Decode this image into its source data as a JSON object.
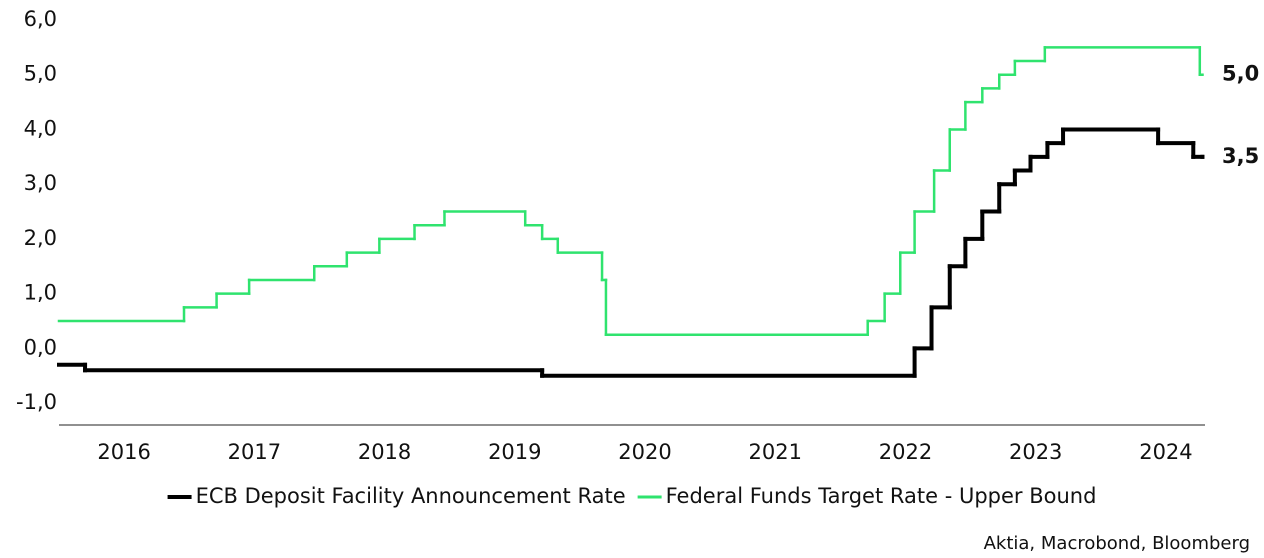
{
  "chart_data": {
    "type": "step",
    "source": "Aktia, Macrobond, Bloomberg",
    "xlim": [
      2016.0,
      2024.8
    ],
    "xticks": [
      {
        "value": 2016.5,
        "label": "2016"
      },
      {
        "value": 2017.5,
        "label": "2017"
      },
      {
        "value": 2018.5,
        "label": "2018"
      },
      {
        "value": 2019.5,
        "label": "2019"
      },
      {
        "value": 2020.5,
        "label": "2020"
      },
      {
        "value": 2021.5,
        "label": "2021"
      },
      {
        "value": 2022.5,
        "label": "2022"
      },
      {
        "value": 2023.5,
        "label": "2023"
      },
      {
        "value": 2024.5,
        "label": "2024"
      }
    ],
    "ylim": [
      -1.4,
      6.0
    ],
    "yticks": [
      {
        "value": -1,
        "label": "-1,0"
      },
      {
        "value": 0,
        "label": "0,0"
      },
      {
        "value": 1,
        "label": "1,0"
      },
      {
        "value": 2,
        "label": "2,0"
      },
      {
        "value": 3,
        "label": "3,0"
      },
      {
        "value": 4,
        "label": "4,0"
      },
      {
        "value": 5,
        "label": "5,0"
      },
      {
        "value": 6,
        "label": "6,0"
      }
    ],
    "grid": false,
    "legend": "bottom",
    "series": [
      {
        "name": "ECB Deposit Facility Announcement Rate",
        "color": "#000000",
        "width": 4,
        "end_label": "3,5",
        "x": [
          2016.0,
          2016.2,
          2019.71,
          2022.57,
          2022.7,
          2022.84,
          2022.96,
          2023.09,
          2023.22,
          2023.34,
          2023.46,
          2023.59,
          2023.71,
          2024.44,
          2024.71,
          2024.78
        ],
        "values": [
          -0.3,
          -0.4,
          -0.5,
          0.0,
          0.75,
          1.5,
          2.0,
          2.5,
          3.0,
          3.25,
          3.5,
          3.75,
          4.0,
          3.75,
          3.5,
          3.5
        ]
      },
      {
        "name": "Federal Funds Target Rate - Upper Bound",
        "color": "#2fe36e",
        "width": 2.5,
        "end_label": "5,0",
        "x": [
          2016.0,
          2016.96,
          2017.21,
          2017.46,
          2017.96,
          2018.21,
          2018.46,
          2018.73,
          2018.96,
          2019.58,
          2019.71,
          2019.83,
          2020.17,
          2020.2,
          2022.21,
          2022.34,
          2022.46,
          2022.57,
          2022.72,
          2022.84,
          2022.96,
          2023.09,
          2023.22,
          2023.34,
          2023.57,
          2024.76,
          2024.78
        ],
        "values": [
          0.5,
          0.75,
          1.0,
          1.25,
          1.5,
          1.75,
          2.0,
          2.25,
          2.5,
          2.25,
          2.0,
          1.75,
          1.25,
          0.25,
          0.5,
          1.0,
          1.75,
          2.5,
          3.25,
          4.0,
          4.5,
          4.75,
          5.0,
          5.25,
          5.5,
          5.0,
          5.0
        ]
      }
    ]
  }
}
